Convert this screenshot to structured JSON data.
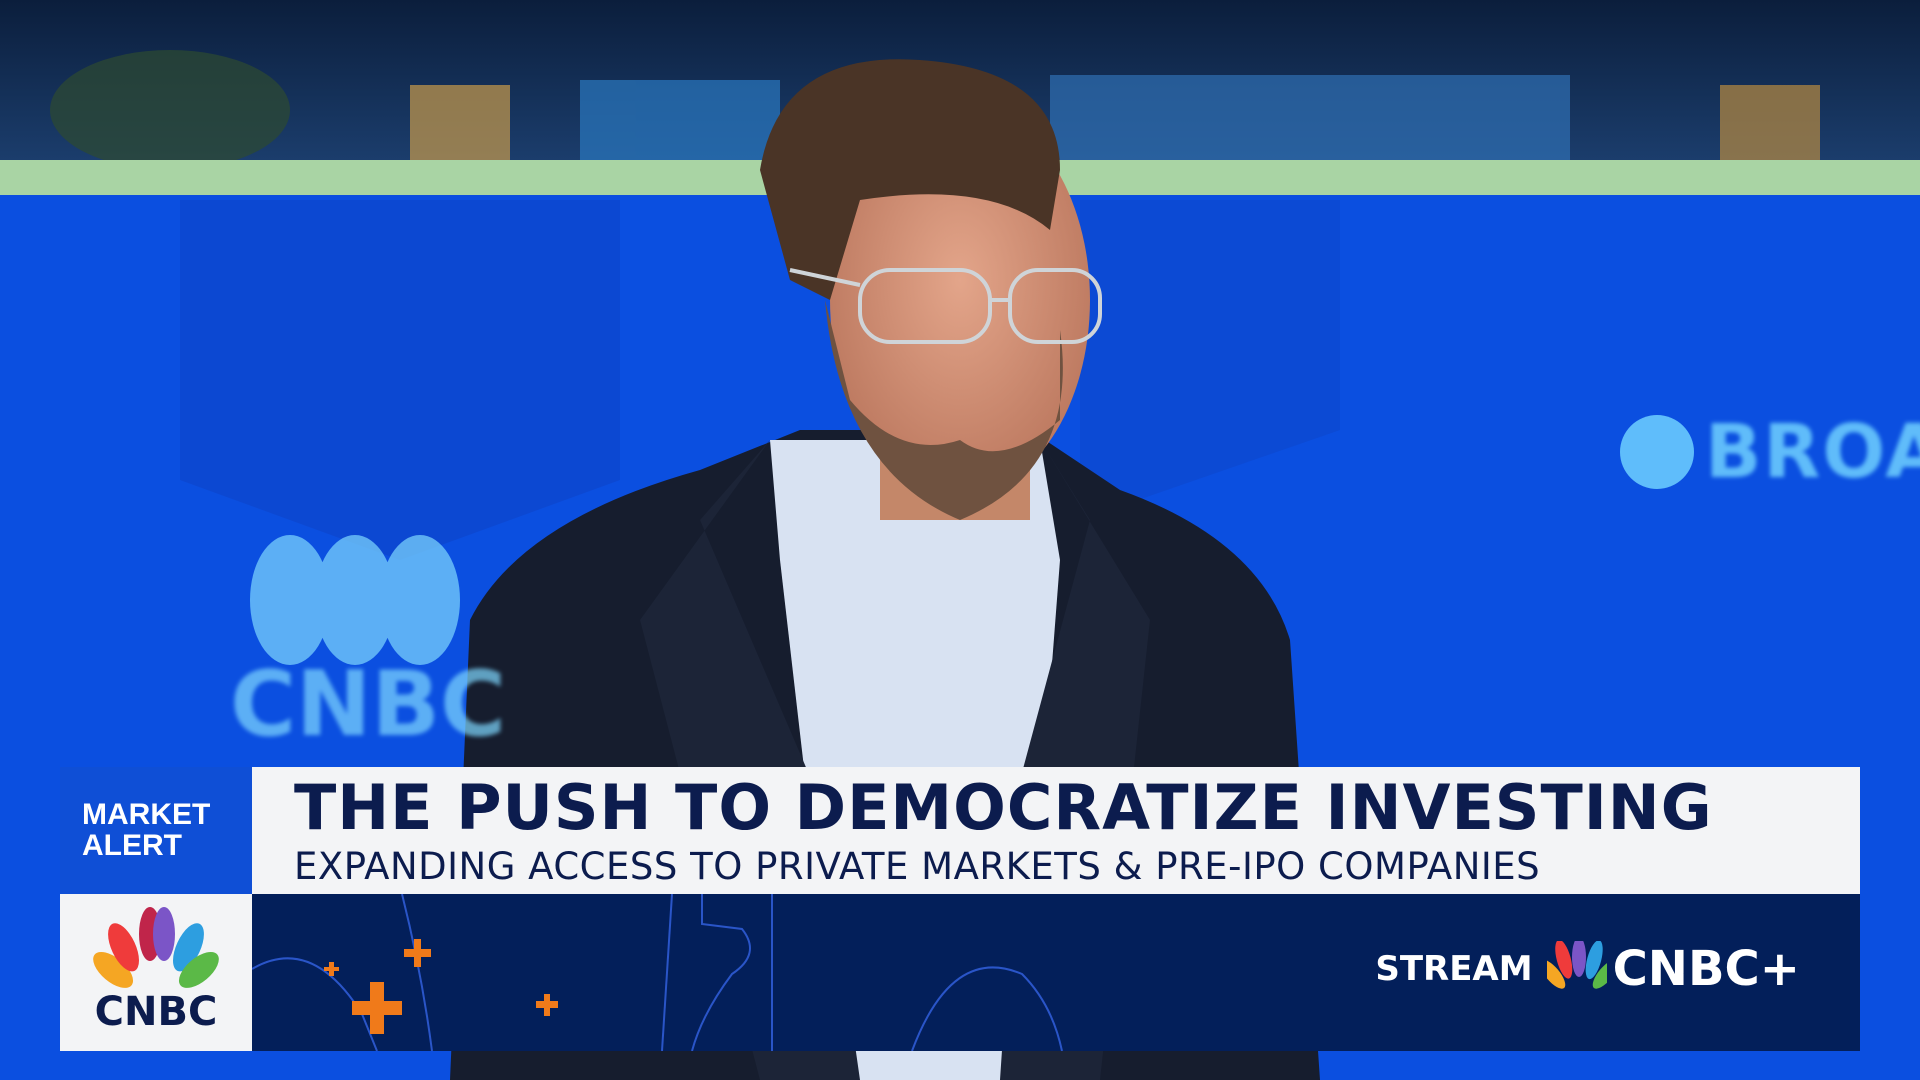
{
  "lower_third": {
    "tag": "MARKET ALERT",
    "headline": "THE PUSH TO DEMOCRATIZE INVESTING",
    "subheadline": "EXPANDING ACCESS TO PRIVATE MARKETS & PRE-IPO COMPANIES",
    "network_logo": "CNBC",
    "promo_stream": "STREAM",
    "promo_brand": "CNBC+"
  },
  "background": {
    "sponsor_text": "BROAD",
    "set_logo": "CNBC"
  },
  "colors": {
    "studio_blue": "#0b4fe0",
    "navy": "#031f5a",
    "headline_text": "#0c1c4e",
    "alert_blue": "#0f4fd6",
    "accent_orange": "#f07a1a"
  }
}
